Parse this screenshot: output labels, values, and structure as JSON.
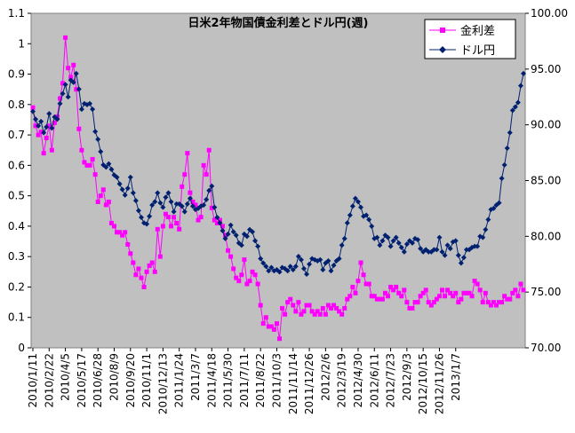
{
  "chart_data": {
    "type": "line",
    "title": "日米2年物国債金利差とドル円(週)",
    "legend_position": "top-right",
    "grid": false,
    "plot_background": "#c0c0c0",
    "x_tick_labels": [
      "2010/1/11",
      "2010/2/22",
      "2010/4/5",
      "2010/5/17",
      "2010/6/28",
      "2010/8/9",
      "2010/9/20",
      "2010/11/1",
      "2010/12/13",
      "2011/1/24",
      "2011/3/7",
      "2011/4/18",
      "2011/5/30",
      "2011/7/11",
      "2011/8/22",
      "2011/10/3",
      "2011/11/14",
      "2011/12/26",
      "2012/2/6",
      "2012/3/19",
      "2012/4/30",
      "2012/6/11",
      "2012/7/23",
      "2012/9/3",
      "2012/10/15",
      "2012/11/26",
      "2013/1/7"
    ],
    "y_left": {
      "min": 0,
      "max": 1.1,
      "ticks": [
        "0",
        "0.1",
        "0.2",
        "0.3",
        "0.4",
        "0.5",
        "0.6",
        "0.7",
        "0.8",
        "0.9",
        "1",
        "1.1"
      ]
    },
    "y_right": {
      "min": 70,
      "max": 100,
      "ticks": [
        "70.00",
        "75.00",
        "80.00",
        "85.00",
        "90.00",
        "95.00",
        "100.00"
      ]
    },
    "series": [
      {
        "name": "金利差",
        "color": "#ff00ff",
        "marker": "square",
        "axis": "left",
        "values": [
          0.79,
          0.73,
          0.7,
          0.71,
          0.64,
          0.69,
          0.73,
          0.65,
          0.74,
          0.76,
          0.82,
          0.87,
          1.02,
          0.92,
          0.89,
          0.93,
          0.85,
          0.72,
          0.65,
          0.61,
          0.6,
          0.6,
          0.62,
          0.57,
          0.48,
          0.5,
          0.52,
          0.47,
          0.48,
          0.41,
          0.4,
          0.38,
          0.38,
          0.37,
          0.38,
          0.34,
          0.31,
          0.28,
          0.24,
          0.26,
          0.23,
          0.2,
          0.25,
          0.27,
          0.28,
          0.25,
          0.39,
          0.3,
          0.4,
          0.44,
          0.43,
          0.4,
          0.43,
          0.41,
          0.39,
          0.53,
          0.57,
          0.64,
          0.51,
          0.48,
          0.47,
          0.42,
          0.43,
          0.6,
          0.57,
          0.65,
          0.46,
          0.42,
          0.41,
          0.42,
          0.4,
          0.37,
          0.32,
          0.3,
          0.26,
          0.23,
          0.22,
          0.24,
          0.29,
          0.21,
          0.22,
          0.25,
          0.24,
          0.21,
          0.14,
          0.08,
          0.1,
          0.07,
          0.07,
          0.06,
          0.08,
          0.03,
          0.13,
          0.11,
          0.15,
          0.16,
          0.14,
          0.12,
          0.15,
          0.11,
          0.12,
          0.14,
          0.14,
          0.12,
          0.11,
          0.12,
          0.11,
          0.13,
          0.11,
          0.14,
          0.13,
          0.14,
          0.13,
          0.12,
          0.11,
          0.13,
          0.16,
          0.17,
          0.2,
          0.18,
          0.22,
          0.28,
          0.24,
          0.21,
          0.21,
          0.17,
          0.17,
          0.16,
          0.16,
          0.16,
          0.18,
          0.17,
          0.2,
          0.19,
          0.2,
          0.18,
          0.17,
          0.19,
          0.15,
          0.13,
          0.13,
          0.15,
          0.15,
          0.17,
          0.18,
          0.19,
          0.15,
          0.14,
          0.15,
          0.16,
          0.17,
          0.19,
          0.17,
          0.19,
          0.18,
          0.17,
          0.18,
          0.15,
          0.16,
          0.18,
          0.18,
          0.18,
          0.17,
          0.22,
          0.21,
          0.19,
          0.15,
          0.18,
          0.15,
          0.14,
          0.15,
          0.14,
          0.15,
          0.15,
          0.17,
          0.16,
          0.16,
          0.18,
          0.19,
          0.17,
          0.21,
          0.19
        ]
      },
      {
        "name": "ドル円",
        "color": "#002070",
        "marker": "diamond",
        "axis": "right",
        "values": [
          91.2,
          90.5,
          89.9,
          90.3,
          89.3,
          89.8,
          91.0,
          89.7,
          90.7,
          90.5,
          91.9,
          92.8,
          93.6,
          92.5,
          94.0,
          93.8,
          94.6,
          93.2,
          91.4,
          91.9,
          91.8,
          91.9,
          91.4,
          89.4,
          88.7,
          87.6,
          86.4,
          86.2,
          86.5,
          86.0,
          85.5,
          85.3,
          84.7,
          84.2,
          83.7,
          84.3,
          85.3,
          83.9,
          83.2,
          82.3,
          81.7,
          81.2,
          81.1,
          81.8,
          82.8,
          83.1,
          83.9,
          83.0,
          82.6,
          83.5,
          83.9,
          83.1,
          82.2,
          82.9,
          82.9,
          82.7,
          82.2,
          82.9,
          83.4,
          82.7,
          82.4,
          82.5,
          82.7,
          82.8,
          83.3,
          84.1,
          84.5,
          82.6,
          81.7,
          81.2,
          80.5,
          79.8,
          80.2,
          81.0,
          80.4,
          80.1,
          79.4,
          79.2,
          80.2,
          80.0,
          80.6,
          80.4,
          79.6,
          79.1,
          78.0,
          77.6,
          77.3,
          76.9,
          77.2,
          76.9,
          77.0,
          76.8,
          77.2,
          77.1,
          76.9,
          77.3,
          77.0,
          77.3,
          78.2,
          77.9,
          77.1,
          76.6,
          77.5,
          78.0,
          77.9,
          77.8,
          77.9,
          77.0,
          77.6,
          77.8,
          76.9,
          77.4,
          77.8,
          78.0,
          79.2,
          79.8,
          81.2,
          81.9,
          82.7,
          83.4,
          83.1,
          82.6,
          81.8,
          81.9,
          81.5,
          80.9,
          79.8,
          79.9,
          79.2,
          79.6,
          80.1,
          79.9,
          79.1,
          79.6,
          79.9,
          79.4,
          79.0,
          78.6,
          79.3,
          79.6,
          79.4,
          79.8,
          79.7,
          78.9,
          78.6,
          78.8,
          78.6,
          78.6,
          78.8,
          78.8,
          79.9,
          78.6,
          78.3,
          79.2,
          78.9,
          79.5,
          79.6,
          78.3,
          77.6,
          78.1,
          78.8,
          78.8,
          79.0,
          79.1,
          79.1,
          80.0,
          79.9,
          80.6,
          81.5,
          82.4,
          82.5,
          82.8,
          83.0,
          85.2,
          86.4,
          87.9,
          89.3,
          91.3,
          91.6,
          92.0,
          93.5,
          94.6
        ]
      }
    ]
  }
}
